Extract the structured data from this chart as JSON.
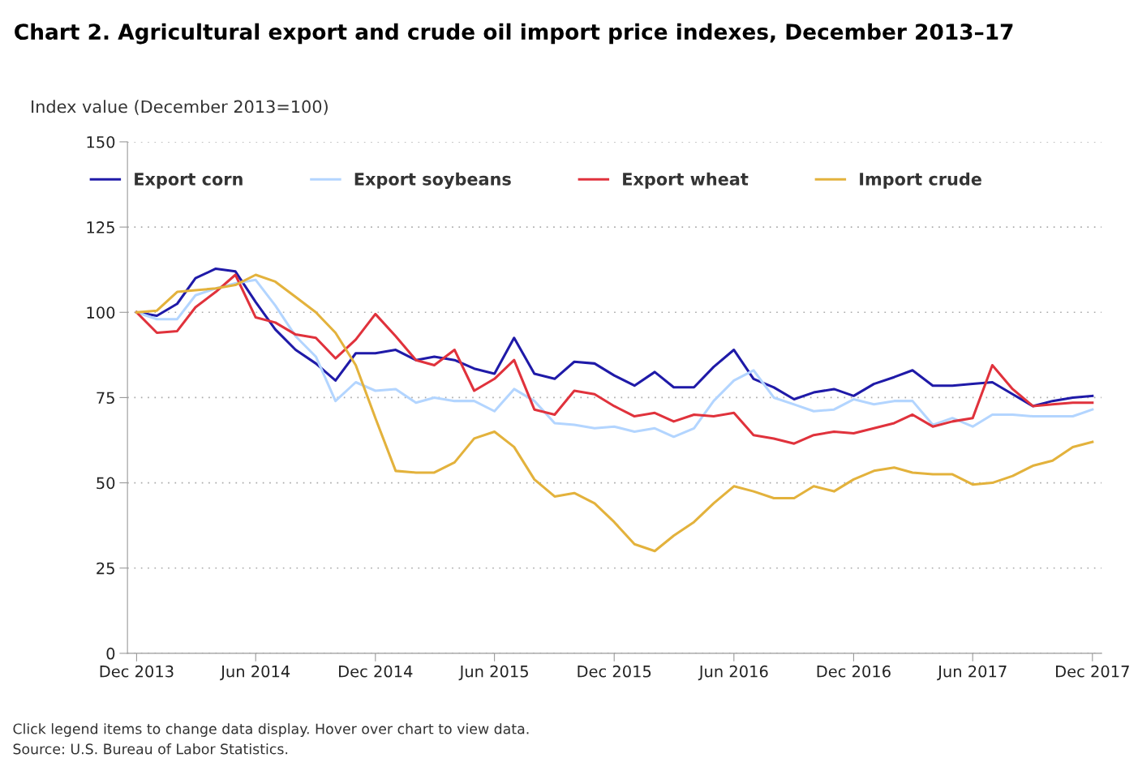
{
  "chart_data": {
    "type": "line",
    "title": "Chart 2. Agricultural export and crude oil import price indexes, December 2013–17",
    "ylabel": "Index value (December 2013=100)",
    "x": [
      "2013-12",
      "2014-01",
      "2014-02",
      "2014-03",
      "2014-04",
      "2014-05",
      "2014-06",
      "2014-07",
      "2014-08",
      "2014-09",
      "2014-10",
      "2014-11",
      "2014-12",
      "2015-01",
      "2015-02",
      "2015-03",
      "2015-04",
      "2015-05",
      "2015-06",
      "2015-07",
      "2015-08",
      "2015-09",
      "2015-10",
      "2015-11",
      "2015-12",
      "2016-01",
      "2016-02",
      "2016-03",
      "2016-04",
      "2016-05",
      "2016-06",
      "2016-07",
      "2016-08",
      "2016-09",
      "2016-10",
      "2016-11",
      "2016-12",
      "2017-01",
      "2017-02",
      "2017-03",
      "2017-04",
      "2017-05",
      "2017-06",
      "2017-07",
      "2017-08",
      "2017-09",
      "2017-10",
      "2017-11",
      "2017-12"
    ],
    "series": [
      {
        "name": "Export corn",
        "color": "#1f1aa8",
        "values": [
          100,
          99,
          102.5,
          110,
          112.8,
          112,
          103,
          95,
          89,
          85,
          80,
          88,
          88,
          89,
          86,
          87,
          86,
          83.5,
          82,
          92.5,
          82,
          80.5,
          85.5,
          85,
          81.5,
          78.5,
          82.5,
          78,
          78,
          84,
          89,
          80.5,
          78,
          74.5,
          76.5,
          77.5,
          75.5,
          79,
          81,
          83,
          78.5,
          78.5,
          79,
          79.5,
          76,
          72.5,
          74,
          75,
          75.5
        ]
      },
      {
        "name": "Export soybeans",
        "color": "#b3d5ff",
        "values": [
          100,
          98,
          98,
          105,
          107,
          108.5,
          109.5,
          102,
          93,
          87,
          74,
          79.5,
          77,
          77.5,
          73.5,
          75,
          74,
          74,
          71,
          77.5,
          74,
          67.5,
          67,
          66,
          66.5,
          65,
          66,
          63.5,
          66,
          74,
          80,
          83,
          75,
          73,
          71,
          71.5,
          74.5,
          73,
          74,
          74,
          67,
          69,
          66.5,
          70,
          70,
          69.5,
          69.5,
          69.5,
          71.5
        ]
      },
      {
        "name": "Export wheat",
        "color": "#e0323c",
        "values": [
          100,
          94,
          94.5,
          101.5,
          106,
          111,
          98.5,
          97,
          93.5,
          92.5,
          86.5,
          92,
          99.5,
          93,
          86,
          84.5,
          89,
          77,
          80.5,
          86,
          71.5,
          70,
          77,
          76,
          72.5,
          69.5,
          70.5,
          68,
          70,
          69.5,
          70.5,
          64,
          63,
          61.5,
          64,
          65,
          64.5,
          66,
          67.5,
          70,
          66.5,
          68,
          69,
          84.5,
          77.5,
          72.5,
          73,
          73.5,
          73.5
        ]
      },
      {
        "name": "Import crude",
        "color": "#e3b23c",
        "values": [
          100,
          100.5,
          106,
          106.5,
          107,
          108,
          111,
          109,
          104.5,
          100,
          94,
          84.5,
          69,
          53.5,
          53,
          53,
          56,
          63,
          65,
          60.5,
          51,
          46,
          47,
          44,
          38.5,
          32,
          30,
          34.5,
          38.5,
          44,
          49,
          47.5,
          45.5,
          45.5,
          49,
          47.5,
          51,
          53.5,
          54.5,
          53,
          52.5,
          52.5,
          49.5,
          50,
          52,
          55,
          56.5,
          60.5,
          62
        ]
      }
    ],
    "xlim": [
      "2013-11-17",
      "2017-12-15"
    ],
    "xticks": [
      {
        "value": "2013-12",
        "label": "Dec 2013"
      },
      {
        "value": "2014-06",
        "label": "Jun 2014"
      },
      {
        "value": "2014-12",
        "label": "Dec 2014"
      },
      {
        "value": "2015-06",
        "label": "Jun 2015"
      },
      {
        "value": "2015-12",
        "label": "Dec 2015"
      },
      {
        "value": "2016-06",
        "label": "Jun 2016"
      },
      {
        "value": "2016-12",
        "label": "Dec 2016"
      },
      {
        "value": "2017-06",
        "label": "Jun 2017"
      },
      {
        "value": "2017-12",
        "label": "Dec 2017"
      }
    ],
    "ylim": [
      0,
      150
    ],
    "yticks": [
      0,
      25,
      50,
      75,
      100,
      125,
      150
    ],
    "grid": "y",
    "legend": "top",
    "marker": "none",
    "line_style": "solid",
    "annotations": [
      "Click legend items to change data display. Hover over chart to view data.",
      "Source: U.S. Bureau of Labor Statistics."
    ]
  }
}
